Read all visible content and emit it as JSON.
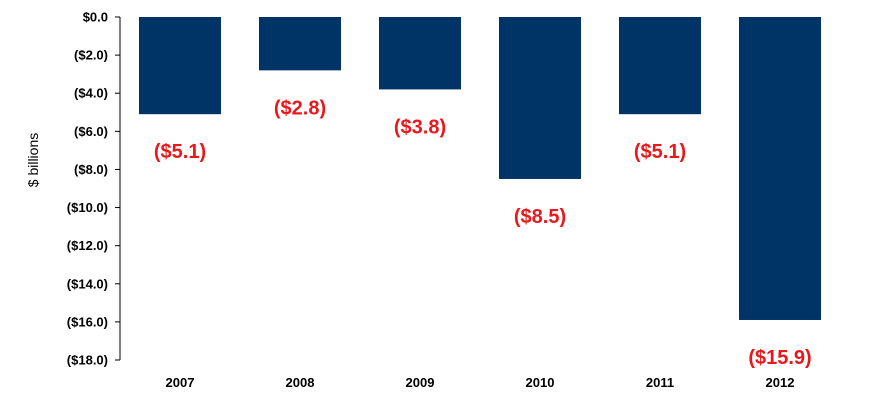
{
  "chart_data": {
    "type": "bar",
    "categories": [
      "2007",
      "2008",
      "2009",
      "2010",
      "2011",
      "2012"
    ],
    "values": [
      -5.1,
      -2.8,
      -3.8,
      -8.5,
      -5.1,
      -15.9
    ],
    "data_labels": [
      "($5.1)",
      "($2.8)",
      "($3.8)",
      "($8.5)",
      "($5.1)",
      "($15.9)"
    ],
    "title": "",
    "xlabel": "",
    "ylabel": "$ billions",
    "ylim": [
      -18,
      0
    ],
    "yticks": [
      0,
      -2,
      -4,
      -6,
      -8,
      -10,
      -12,
      -14,
      -16,
      -18
    ],
    "ytick_labels": [
      "$0.0",
      "($2.0)",
      "($4.0)",
      "($6.0)",
      "($8.0)",
      "($10.0)",
      "($12.0)",
      "($14.0)",
      "($16.0)",
      "($18.0)"
    ],
    "grid": false,
    "legend": "none",
    "colors": {
      "bar": "#003366",
      "data_label": "#e8191c",
      "axis": "#000000"
    }
  }
}
